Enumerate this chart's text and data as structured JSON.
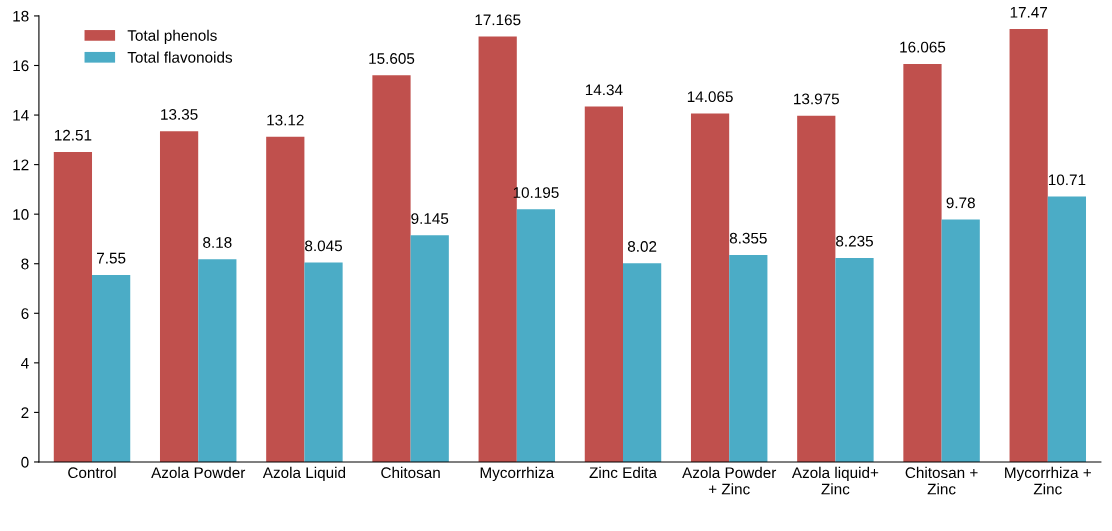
{
  "chart_data": {
    "type": "bar",
    "categories": [
      "Control",
      "Azola Powder",
      "Azola Liquid",
      "Chitosan",
      "Mycorrhiza",
      "Zinc Edita",
      "Azola Powder\n+ Zinc",
      "Azola liquid+\nZinc",
      "Chitosan +\nZinc",
      "Mycorrhiza +\nZinc"
    ],
    "series": [
      {
        "name": "Total phenols",
        "color": "#c0504d",
        "values": [
          12.51,
          13.35,
          13.12,
          15.605,
          17.165,
          14.34,
          14.065,
          13.975,
          16.065,
          17.47
        ]
      },
      {
        "name": "Total flavonoids",
        "color": "#4bacc6",
        "values": [
          7.55,
          8.18,
          8.045,
          9.145,
          10.195,
          8.02,
          8.355,
          8.235,
          9.78,
          10.71
        ]
      }
    ],
    "ylim": [
      0,
      18
    ],
    "yticks": [
      0,
      2,
      4,
      6,
      8,
      10,
      12,
      14,
      16,
      18
    ],
    "data_labels": true,
    "legend": "top left",
    "grid": false
  }
}
